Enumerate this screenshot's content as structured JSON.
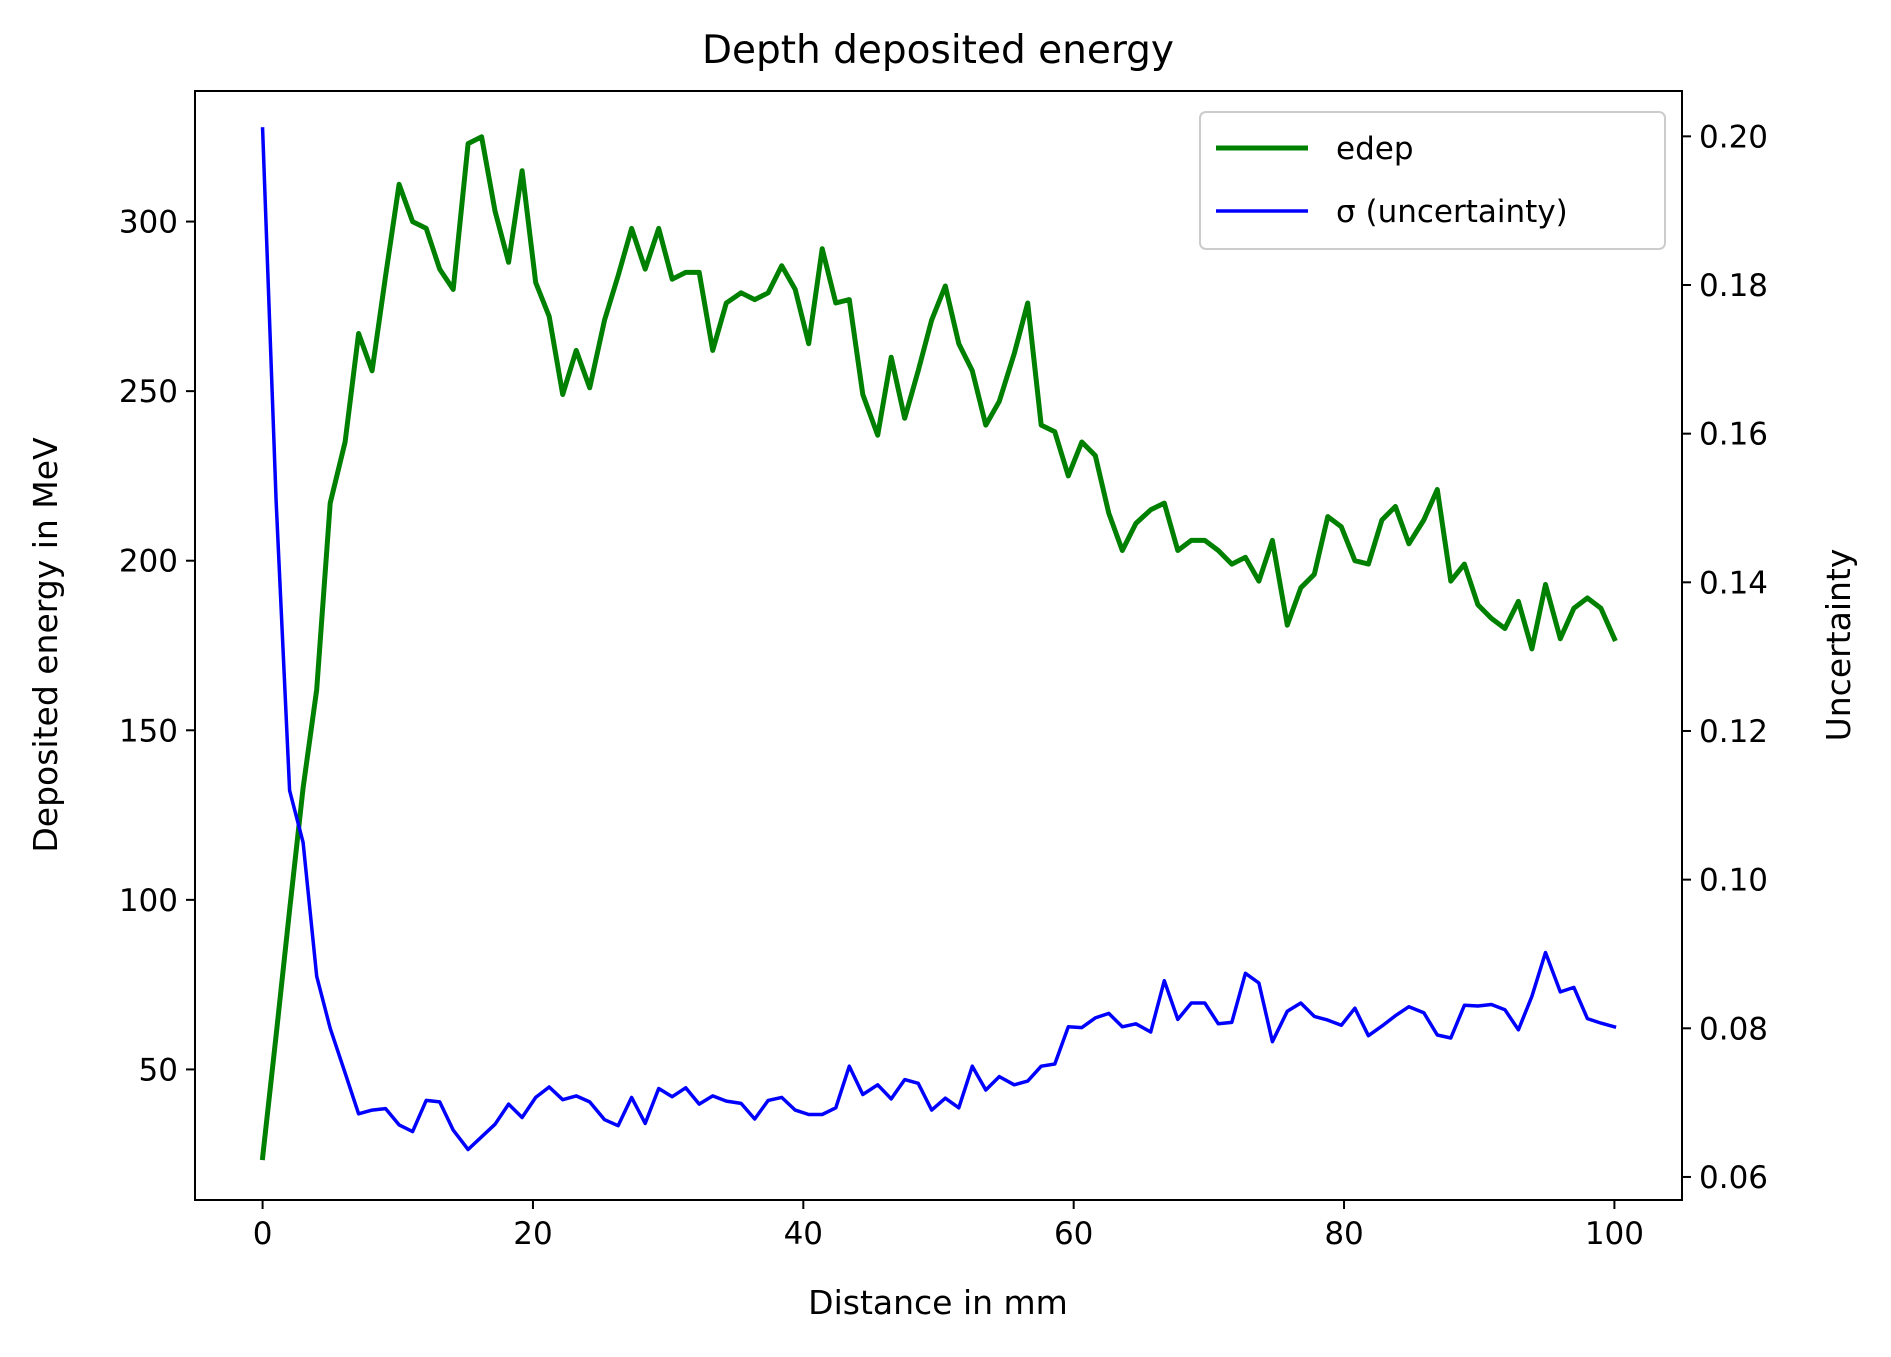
{
  "chart_data": {
    "type": "line",
    "title": "Depth deposited energy",
    "xlabel": "Distance in mm",
    "ylabel_left": "Deposited energy in MeV",
    "ylabel_right": "Uncertainty",
    "xlim": [
      -5,
      105
    ],
    "ylim_left": [
      11.5,
      338.5
    ],
    "ylim_right": [
      0.0569,
      0.2061
    ],
    "x_ticks": [
      0,
      20,
      40,
      60,
      80,
      100
    ],
    "y_ticks_left": [
      50,
      100,
      150,
      200,
      250,
      300
    ],
    "y_ticks_right": [
      0.06,
      0.08,
      0.1,
      0.12,
      0.14,
      0.16,
      0.18,
      0.2
    ],
    "y_tick_labels_right": [
      "0.06",
      "0.08",
      "0.10",
      "0.12",
      "0.14",
      "0.16",
      "0.18",
      "0.20"
    ],
    "legend_position": "top-right",
    "grid": false,
    "x": [
      0,
      1.0,
      2.0,
      3.0,
      4.0,
      5.0,
      6.1,
      7.1,
      8.1,
      9.1,
      10.1,
      11.1,
      12.1,
      13.1,
      14.1,
      15.2,
      16.2,
      17.2,
      18.2,
      19.2,
      20.2,
      21.2,
      22.2,
      23.2,
      24.2,
      25.3,
      26.3,
      27.3,
      28.3,
      29.3,
      30.3,
      31.3,
      32.3,
      33.3,
      34.3,
      35.4,
      36.4,
      37.4,
      38.4,
      39.4,
      40.4,
      41.4,
      42.4,
      43.4,
      44.4,
      45.5,
      46.5,
      47.5,
      48.5,
      49.5,
      50.5,
      51.5,
      52.5,
      53.5,
      54.5,
      55.6,
      56.6,
      57.6,
      58.6,
      59.6,
      60.6,
      61.6,
      62.6,
      63.6,
      64.6,
      65.7,
      66.7,
      67.7,
      68.7,
      69.7,
      70.7,
      71.7,
      72.7,
      73.7,
      74.7,
      75.8,
      76.8,
      77.8,
      78.8,
      79.8,
      80.8,
      81.8,
      82.8,
      83.8,
      84.8,
      85.9,
      86.9,
      87.9,
      88.9,
      89.9,
      90.9,
      91.9,
      92.9,
      93.9,
      94.9,
      96.0,
      97.0,
      98.0,
      99.0,
      100
    ],
    "series": [
      {
        "name": "edep",
        "axis": "left",
        "color": "#008000",
        "values": [
          24,
          60,
          97,
          133,
          162,
          217,
          235,
          267,
          256,
          284,
          311,
          300,
          298,
          286,
          280,
          323,
          325,
          303,
          288,
          315,
          282,
          272,
          249,
          262,
          251,
          271,
          284,
          298,
          286,
          298,
          283,
          285,
          285,
          262,
          276,
          279,
          277,
          279,
          287,
          280,
          264,
          292,
          276,
          277,
          249,
          237,
          260,
          242,
          256,
          271,
          281,
          264,
          256,
          240,
          247,
          261,
          276,
          240,
          238,
          225,
          235,
          231,
          214,
          203,
          211,
          215,
          217,
          203,
          206,
          206,
          203,
          199,
          201,
          194,
          206,
          181,
          192,
          196,
          213,
          210,
          200,
          199,
          212,
          216,
          205,
          212,
          221,
          194,
          199,
          187,
          183,
          180,
          188,
          174,
          193,
          177,
          186,
          189,
          186,
          177
        ]
      },
      {
        "name": "σ (uncertainty)",
        "axis": "right",
        "color": "#0000ff",
        "values": [
          0.201,
          0.151,
          0.112,
          0.105,
          0.087,
          0.08,
          0.074,
          0.0685,
          0.069,
          0.0692,
          0.067,
          0.0661,
          0.0703,
          0.0701,
          0.0663,
          0.0637,
          0.0654,
          0.0671,
          0.0698,
          0.068,
          0.0707,
          0.0721,
          0.0704,
          0.0709,
          0.0701,
          0.0677,
          0.0669,
          0.0707,
          0.0672,
          0.0719,
          0.0708,
          0.072,
          0.0698,
          0.0709,
          0.0702,
          0.0699,
          0.0678,
          0.0703,
          0.0707,
          0.069,
          0.0684,
          0.0684,
          0.0693,
          0.0749,
          0.0711,
          0.0724,
          0.0705,
          0.0731,
          0.0726,
          0.069,
          0.0706,
          0.0693,
          0.0749,
          0.0717,
          0.0735,
          0.0724,
          0.0729,
          0.0749,
          0.0752,
          0.0802,
          0.0801,
          0.0814,
          0.082,
          0.0802,
          0.0806,
          0.0795,
          0.0864,
          0.0812,
          0.0834,
          0.0834,
          0.0806,
          0.0808,
          0.0874,
          0.0861,
          0.0782,
          0.0823,
          0.0834,
          0.0816,
          0.0811,
          0.0804,
          0.0827,
          0.079,
          0.0803,
          0.0817,
          0.0829,
          0.0821,
          0.0791,
          0.0787,
          0.0831,
          0.083,
          0.0832,
          0.0825,
          0.0798,
          0.0843,
          0.0902,
          0.0849,
          0.0855,
          0.0813,
          0.0807,
          0.0802
        ]
      }
    ]
  }
}
